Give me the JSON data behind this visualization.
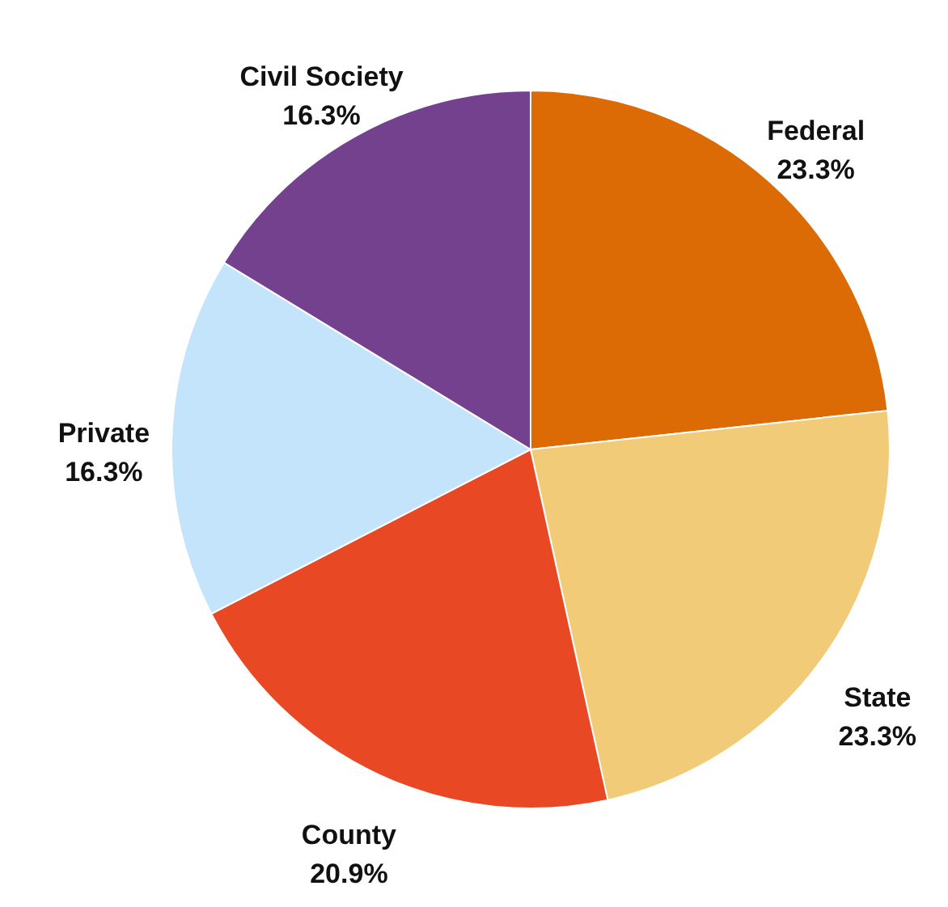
{
  "chart_data": {
    "type": "pie",
    "categories": [
      "Federal",
      "State",
      "County",
      "Private",
      "Civil Society"
    ],
    "values": [
      23.3,
      23.3,
      20.9,
      16.3,
      16.3
    ],
    "colors": [
      "#dc6b05",
      "#f2cb78",
      "#e84824",
      "#c3e4fb",
      "#74418e"
    ],
    "value_labels": [
      "23.3%",
      "23.3%",
      "20.9%",
      "16.3%",
      "16.3%"
    ]
  }
}
